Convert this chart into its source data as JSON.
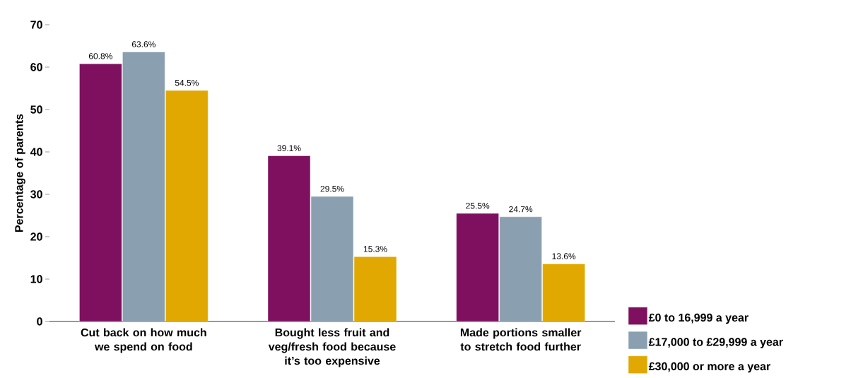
{
  "chart_data": {
    "type": "bar",
    "ylabel": "Percentage of parents",
    "categories": [
      "Cut back on how much we spend on food",
      "Bought less fruit and veg/fresh food because it’s too expensive",
      "Made portions smaller to stretch food further"
    ],
    "series": [
      {
        "name": "£0 to 16,999 a year",
        "color": "#7f1060",
        "values": [
          60.8,
          39.1,
          25.5
        ],
        "value_labels": [
          "60.8%",
          "39.1%",
          "25.5%"
        ]
      },
      {
        "name": "£17,000 to £29,999 a year",
        "color": "#8a9fb0",
        "values": [
          63.6,
          29.5,
          24.7
        ],
        "value_labels": [
          "63.6%",
          "29.5%",
          "24.7%"
        ]
      },
      {
        "name": "£30,000 or more a year",
        "color": "#e0a800",
        "values": [
          54.5,
          15.3,
          13.6
        ],
        "value_labels": [
          "54.5%",
          "15.3%",
          "13.6%"
        ]
      }
    ],
    "ylim": [
      0,
      70
    ],
    "yticks": [
      0,
      10,
      20,
      30,
      40,
      50,
      60,
      70
    ],
    "legend": "bottom right"
  }
}
